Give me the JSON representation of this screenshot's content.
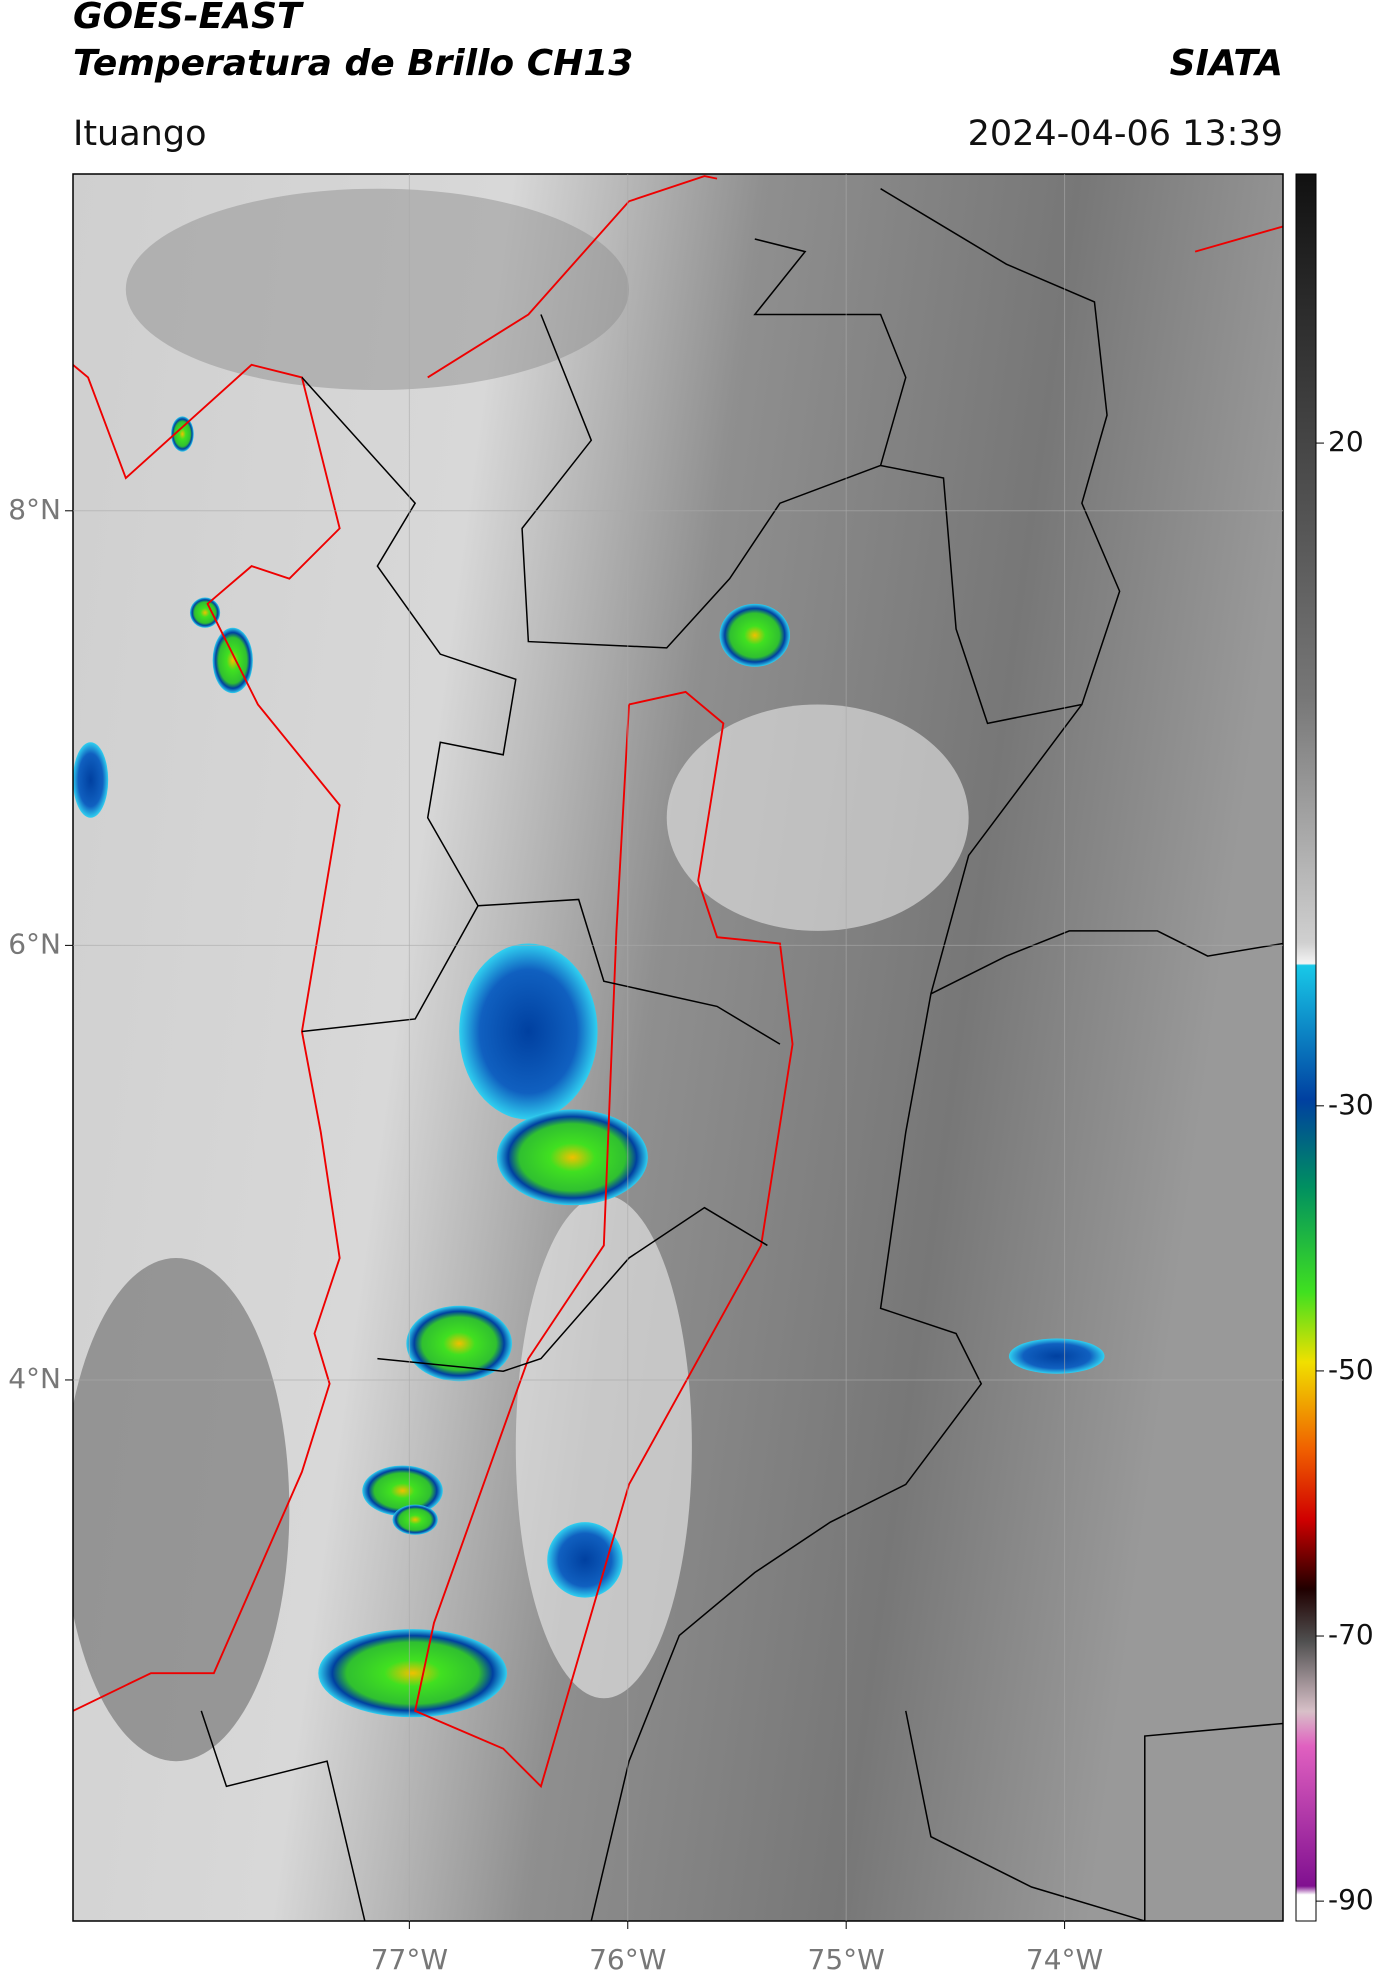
{
  "header": {
    "title": "GOES-EAST",
    "subtitle": "Temperatura de Brillo CH13",
    "source": "SIATA",
    "location": "Ituango",
    "datetime": "2024-04-06 13:39"
  },
  "map": {
    "xlim": [
      -78.54,
      -73.0
    ],
    "ylim": [
      1.51,
      9.55
    ],
    "xticks": [
      {
        "value": -77,
        "label": "77°W"
      },
      {
        "value": -76,
        "label": "76°W"
      },
      {
        "value": -75,
        "label": "75°W"
      },
      {
        "value": -74,
        "label": "74°W"
      }
    ],
    "yticks": [
      {
        "value": 4,
        "label": "4°N"
      },
      {
        "value": 6,
        "label": "6°N"
      },
      {
        "value": 8,
        "label": "8°N"
      }
    ],
    "grid": true
  },
  "colorbar": {
    "lim": [
      -91.5,
      40.3
    ],
    "ticks": [
      20,
      -30,
      -50,
      -70,
      -90
    ]
  }
}
